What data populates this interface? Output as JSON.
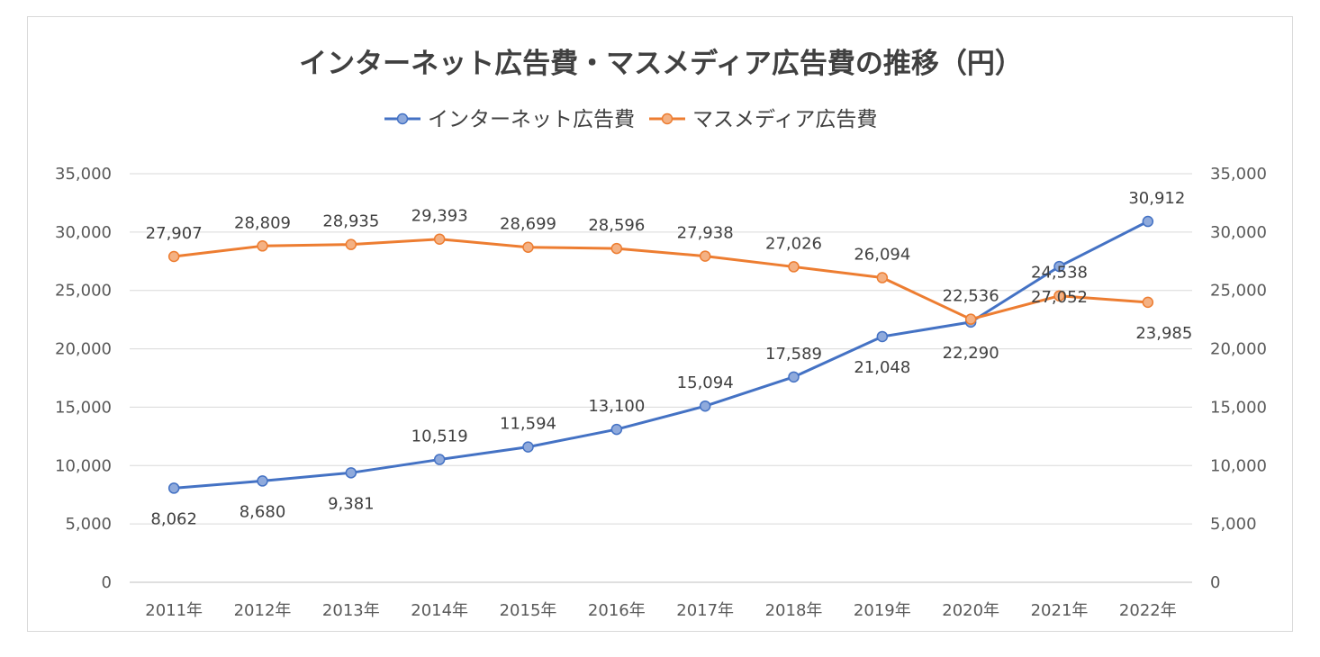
{
  "chart_data": {
    "type": "line",
    "title": "インターネット広告費・マスメディア広告費の推移（円）",
    "categories": [
      "2011年",
      "2012年",
      "2013年",
      "2014年",
      "2015年",
      "2016年",
      "2017年",
      "2018年",
      "2019年",
      "2020年",
      "2021年",
      "2022年"
    ],
    "y_ticks": [
      "0",
      "5,000",
      "10,000",
      "15,000",
      "20,000",
      "25,000",
      "30,000",
      "35,000"
    ],
    "ylim": [
      0,
      35000
    ],
    "y2lim": [
      0,
      35000
    ],
    "grid": true,
    "legend_position": "top",
    "series": [
      {
        "name": "インターネット広告費",
        "color": "#4472c4",
        "marker_fill": "#8faadc",
        "values": [
          8062,
          8680,
          9381,
          10519,
          11594,
          13100,
          15094,
          17589,
          21048,
          22290,
          27052,
          30912
        ],
        "labels": [
          "8,062",
          "8,680",
          "9,381",
          "10,519",
          "11,594",
          "13,100",
          "15,094",
          "17,589",
          "21,048",
          "22,290",
          "27,052",
          "30,912"
        ]
      },
      {
        "name": "マスメディア広告費",
        "color": "#ed7d31",
        "marker_fill": "#f4b183",
        "values": [
          27907,
          28809,
          28935,
          29393,
          28699,
          28596,
          27938,
          27026,
          26094,
          22536,
          24538,
          23985
        ],
        "labels": [
          "27,907",
          "28,809",
          "28,935",
          "29,393",
          "28,699",
          "28,596",
          "27,938",
          "27,026",
          "26,094",
          "22,536",
          "24,538",
          "23,985"
        ]
      }
    ]
  }
}
